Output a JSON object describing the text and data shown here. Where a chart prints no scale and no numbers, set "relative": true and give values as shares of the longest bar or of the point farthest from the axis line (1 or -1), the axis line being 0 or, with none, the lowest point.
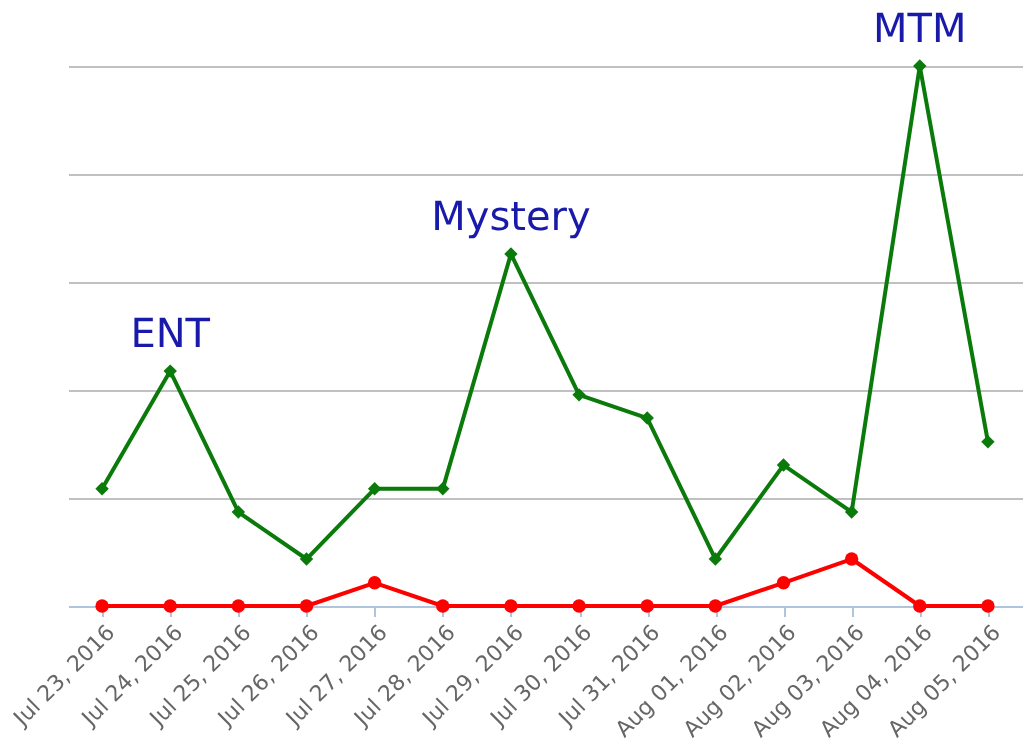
{
  "chart_data": {
    "type": "line",
    "relative": true,
    "grid": "y",
    "categories": [
      "Jul 23, 2016",
      "Jul 24, 2016",
      "Jul 25, 2016",
      "Jul 26, 2016",
      "Jul 27, 2016",
      "Jul 28, 2016",
      "Jul 29, 2016",
      "Jul 30, 2016",
      "Jul 31, 2016",
      "Aug 01, 2016",
      "Aug 02, 2016",
      "Aug 03, 2016",
      "Aug 04, 2016",
      "Aug 05, 2016"
    ],
    "series": [
      {
        "color": "#0a7a0a",
        "marker": "diamond",
        "values": [
          0.217,
          0.435,
          0.174,
          0.087,
          0.217,
          0.217,
          0.652,
          0.391,
          0.348,
          0.087,
          0.261,
          0.174,
          1,
          0.304
        ]
      },
      {
        "color": "#ff0000",
        "marker": "circle",
        "values": [
          0,
          0,
          0,
          0,
          0.043,
          0,
          0,
          0,
          0,
          0,
          0.043,
          0.087,
          0,
          0
        ]
      }
    ],
    "annotations": [
      {
        "text": "ENT",
        "x": "Jul 24, 2016",
        "y": 0.435
      },
      {
        "text": "Mystery",
        "x": "Jul 29, 2016",
        "y": 0.652
      },
      {
        "text": "MTM",
        "x": "Aug 04, 2016",
        "y": 1
      }
    ]
  }
}
